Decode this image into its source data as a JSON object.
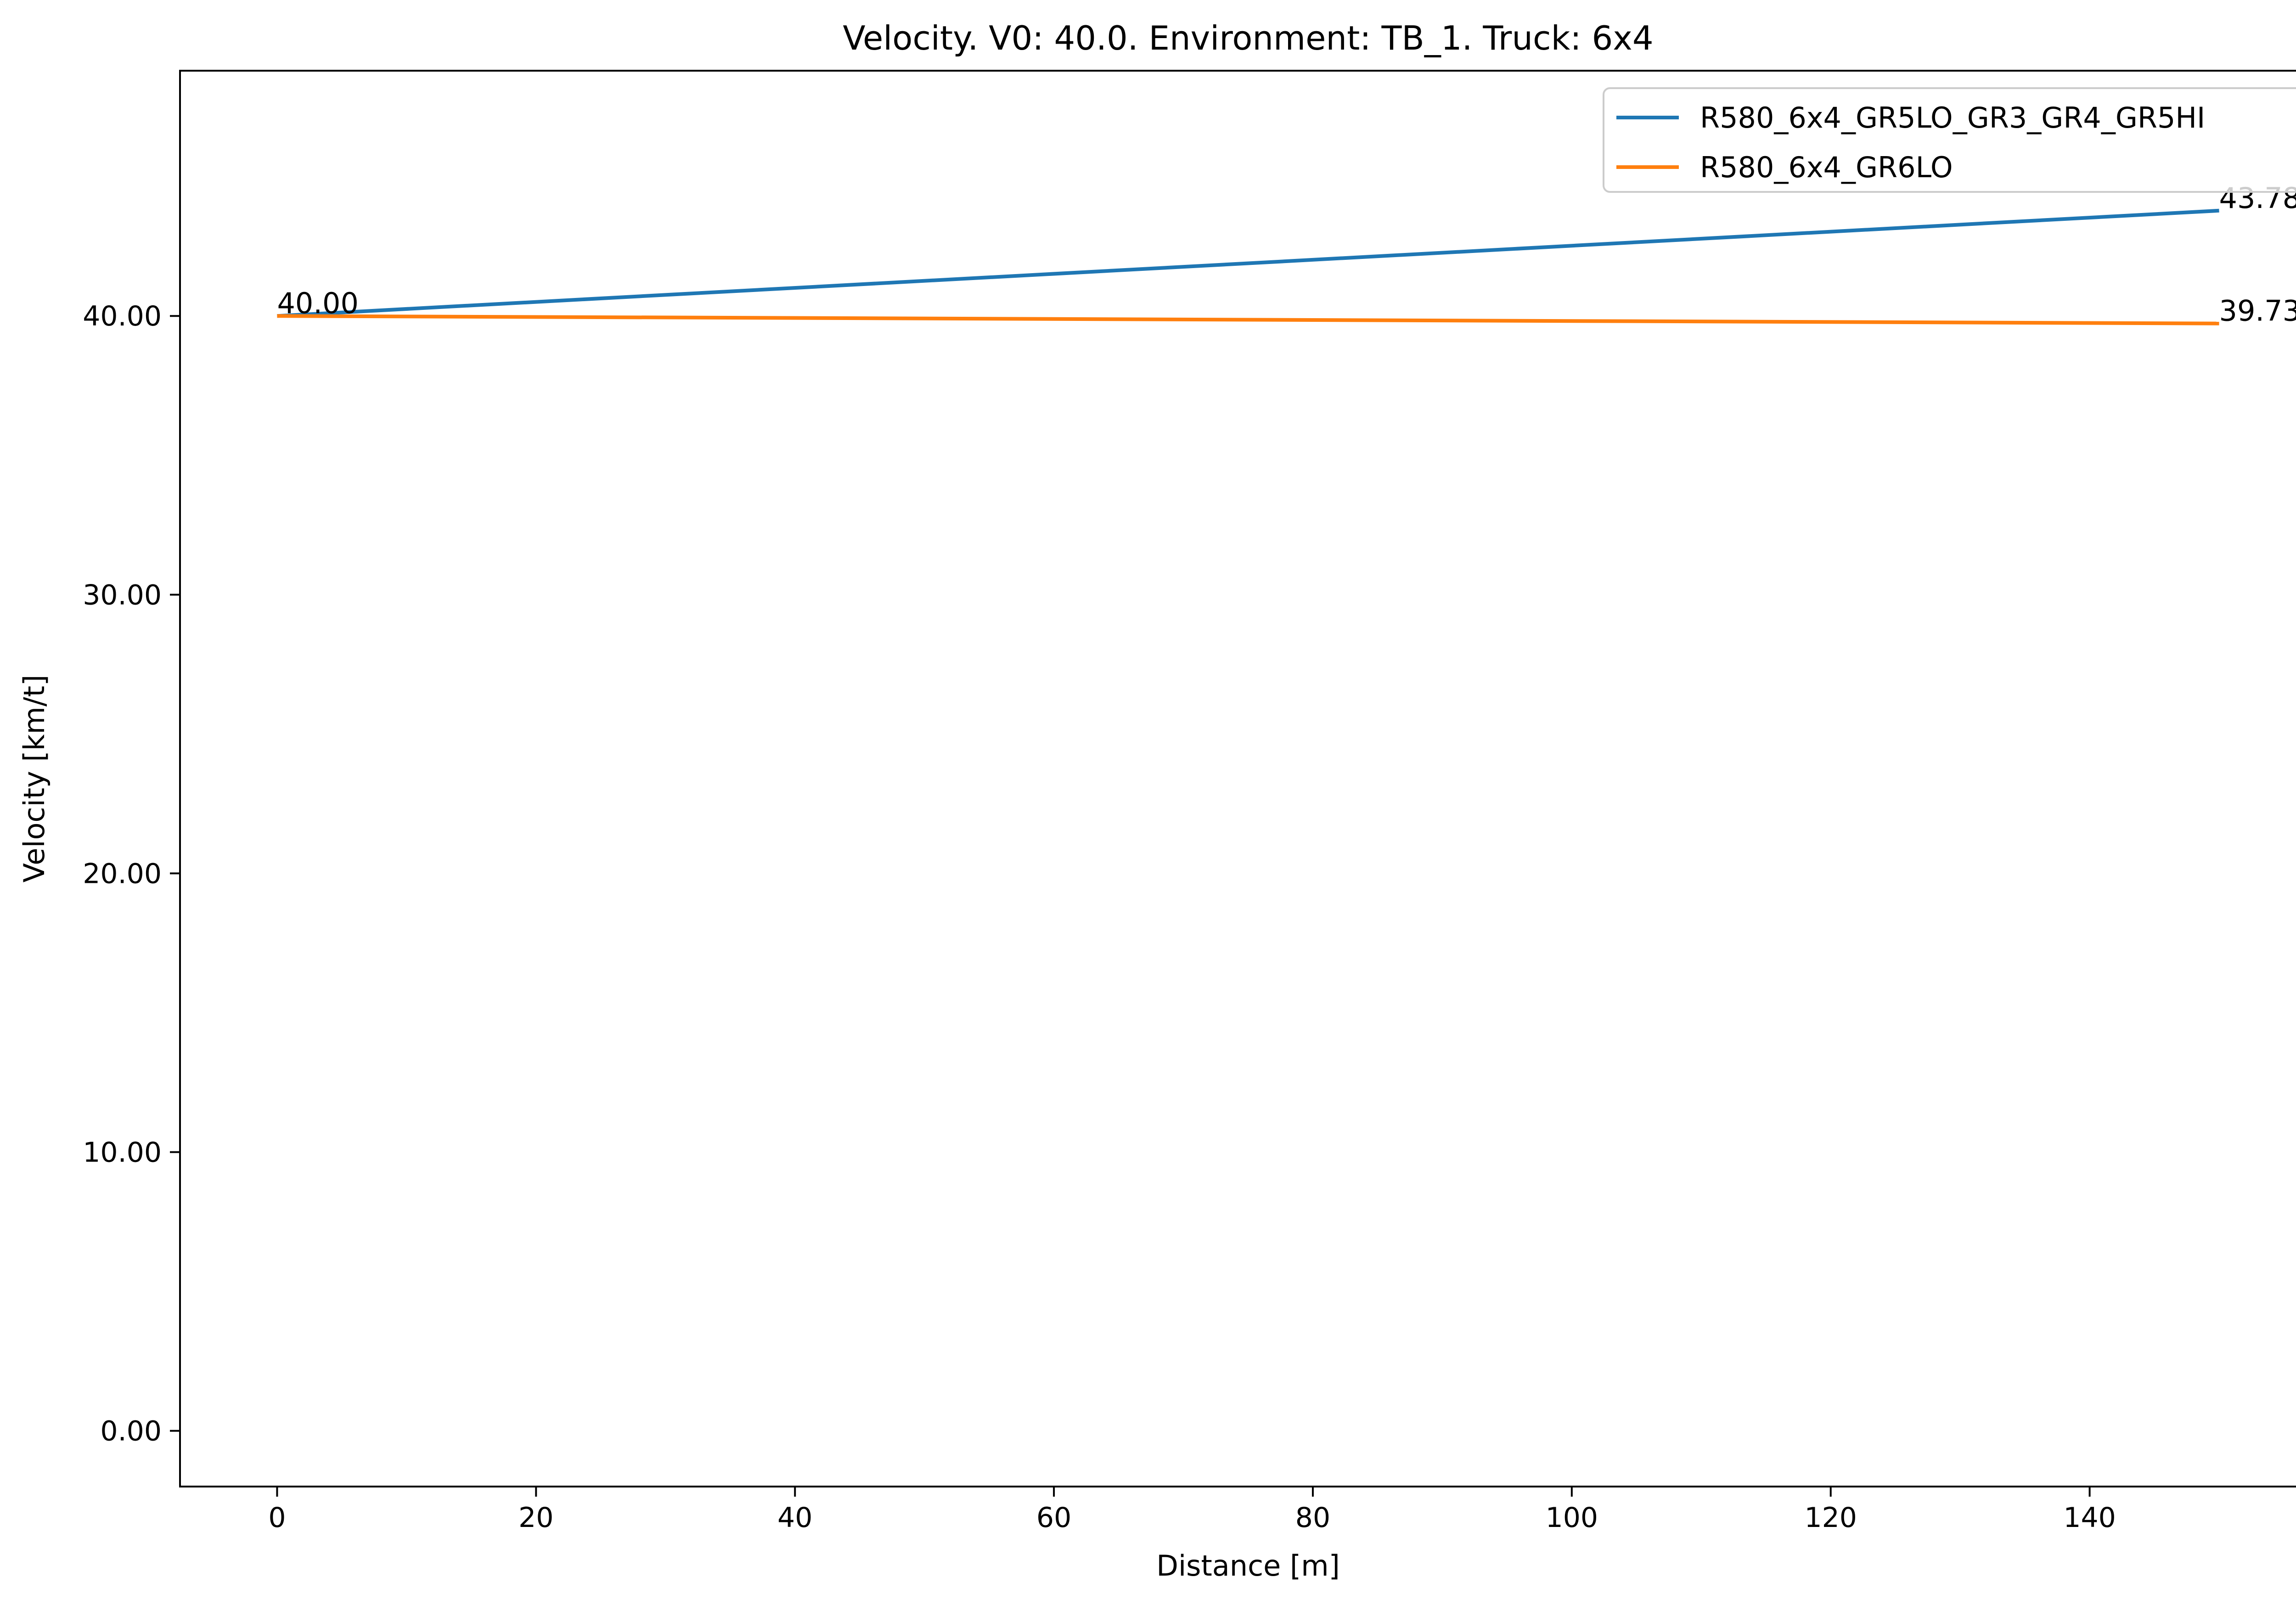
{
  "chart_data": {
    "type": "line",
    "title": "Velocity. V0: 40.0. Environment: TB_1. Truck: 6x4",
    "xlabel": "Distance [m]",
    "ylabel": "Velocity [km/t]",
    "xlim": [
      -7.5,
      157.5
    ],
    "ylim": [
      -2.0,
      48.8
    ],
    "xticks": [
      0,
      20,
      40,
      60,
      80,
      100,
      120,
      140
    ],
    "xtick_labels": [
      "0",
      "20",
      "40",
      "60",
      "80",
      "100",
      "120",
      "140"
    ],
    "yticks": [
      0,
      10,
      20,
      30,
      40
    ],
    "ytick_labels": [
      "0.00",
      "10.00",
      "20.00",
      "30.00",
      "40.00"
    ],
    "grid": false,
    "legend_position": "top-right",
    "series": [
      {
        "name": "R580_6x4_GR5LO_GR3_GR4_GR5HI",
        "color": "#1f77b4",
        "x": [
          0,
          150
        ],
        "y": [
          40.0,
          43.78
        ]
      },
      {
        "name": "R580_6x4_GR6LO",
        "color": "#ff7f0e",
        "x": [
          0,
          150
        ],
        "y": [
          40.0,
          39.73
        ]
      }
    ],
    "annotations": [
      {
        "text": "40.00",
        "x": 0,
        "y": 40.0
      },
      {
        "text": "43.78",
        "x": 150,
        "y": 43.78
      },
      {
        "text": "39.73",
        "x": 150,
        "y": 39.73
      }
    ]
  }
}
